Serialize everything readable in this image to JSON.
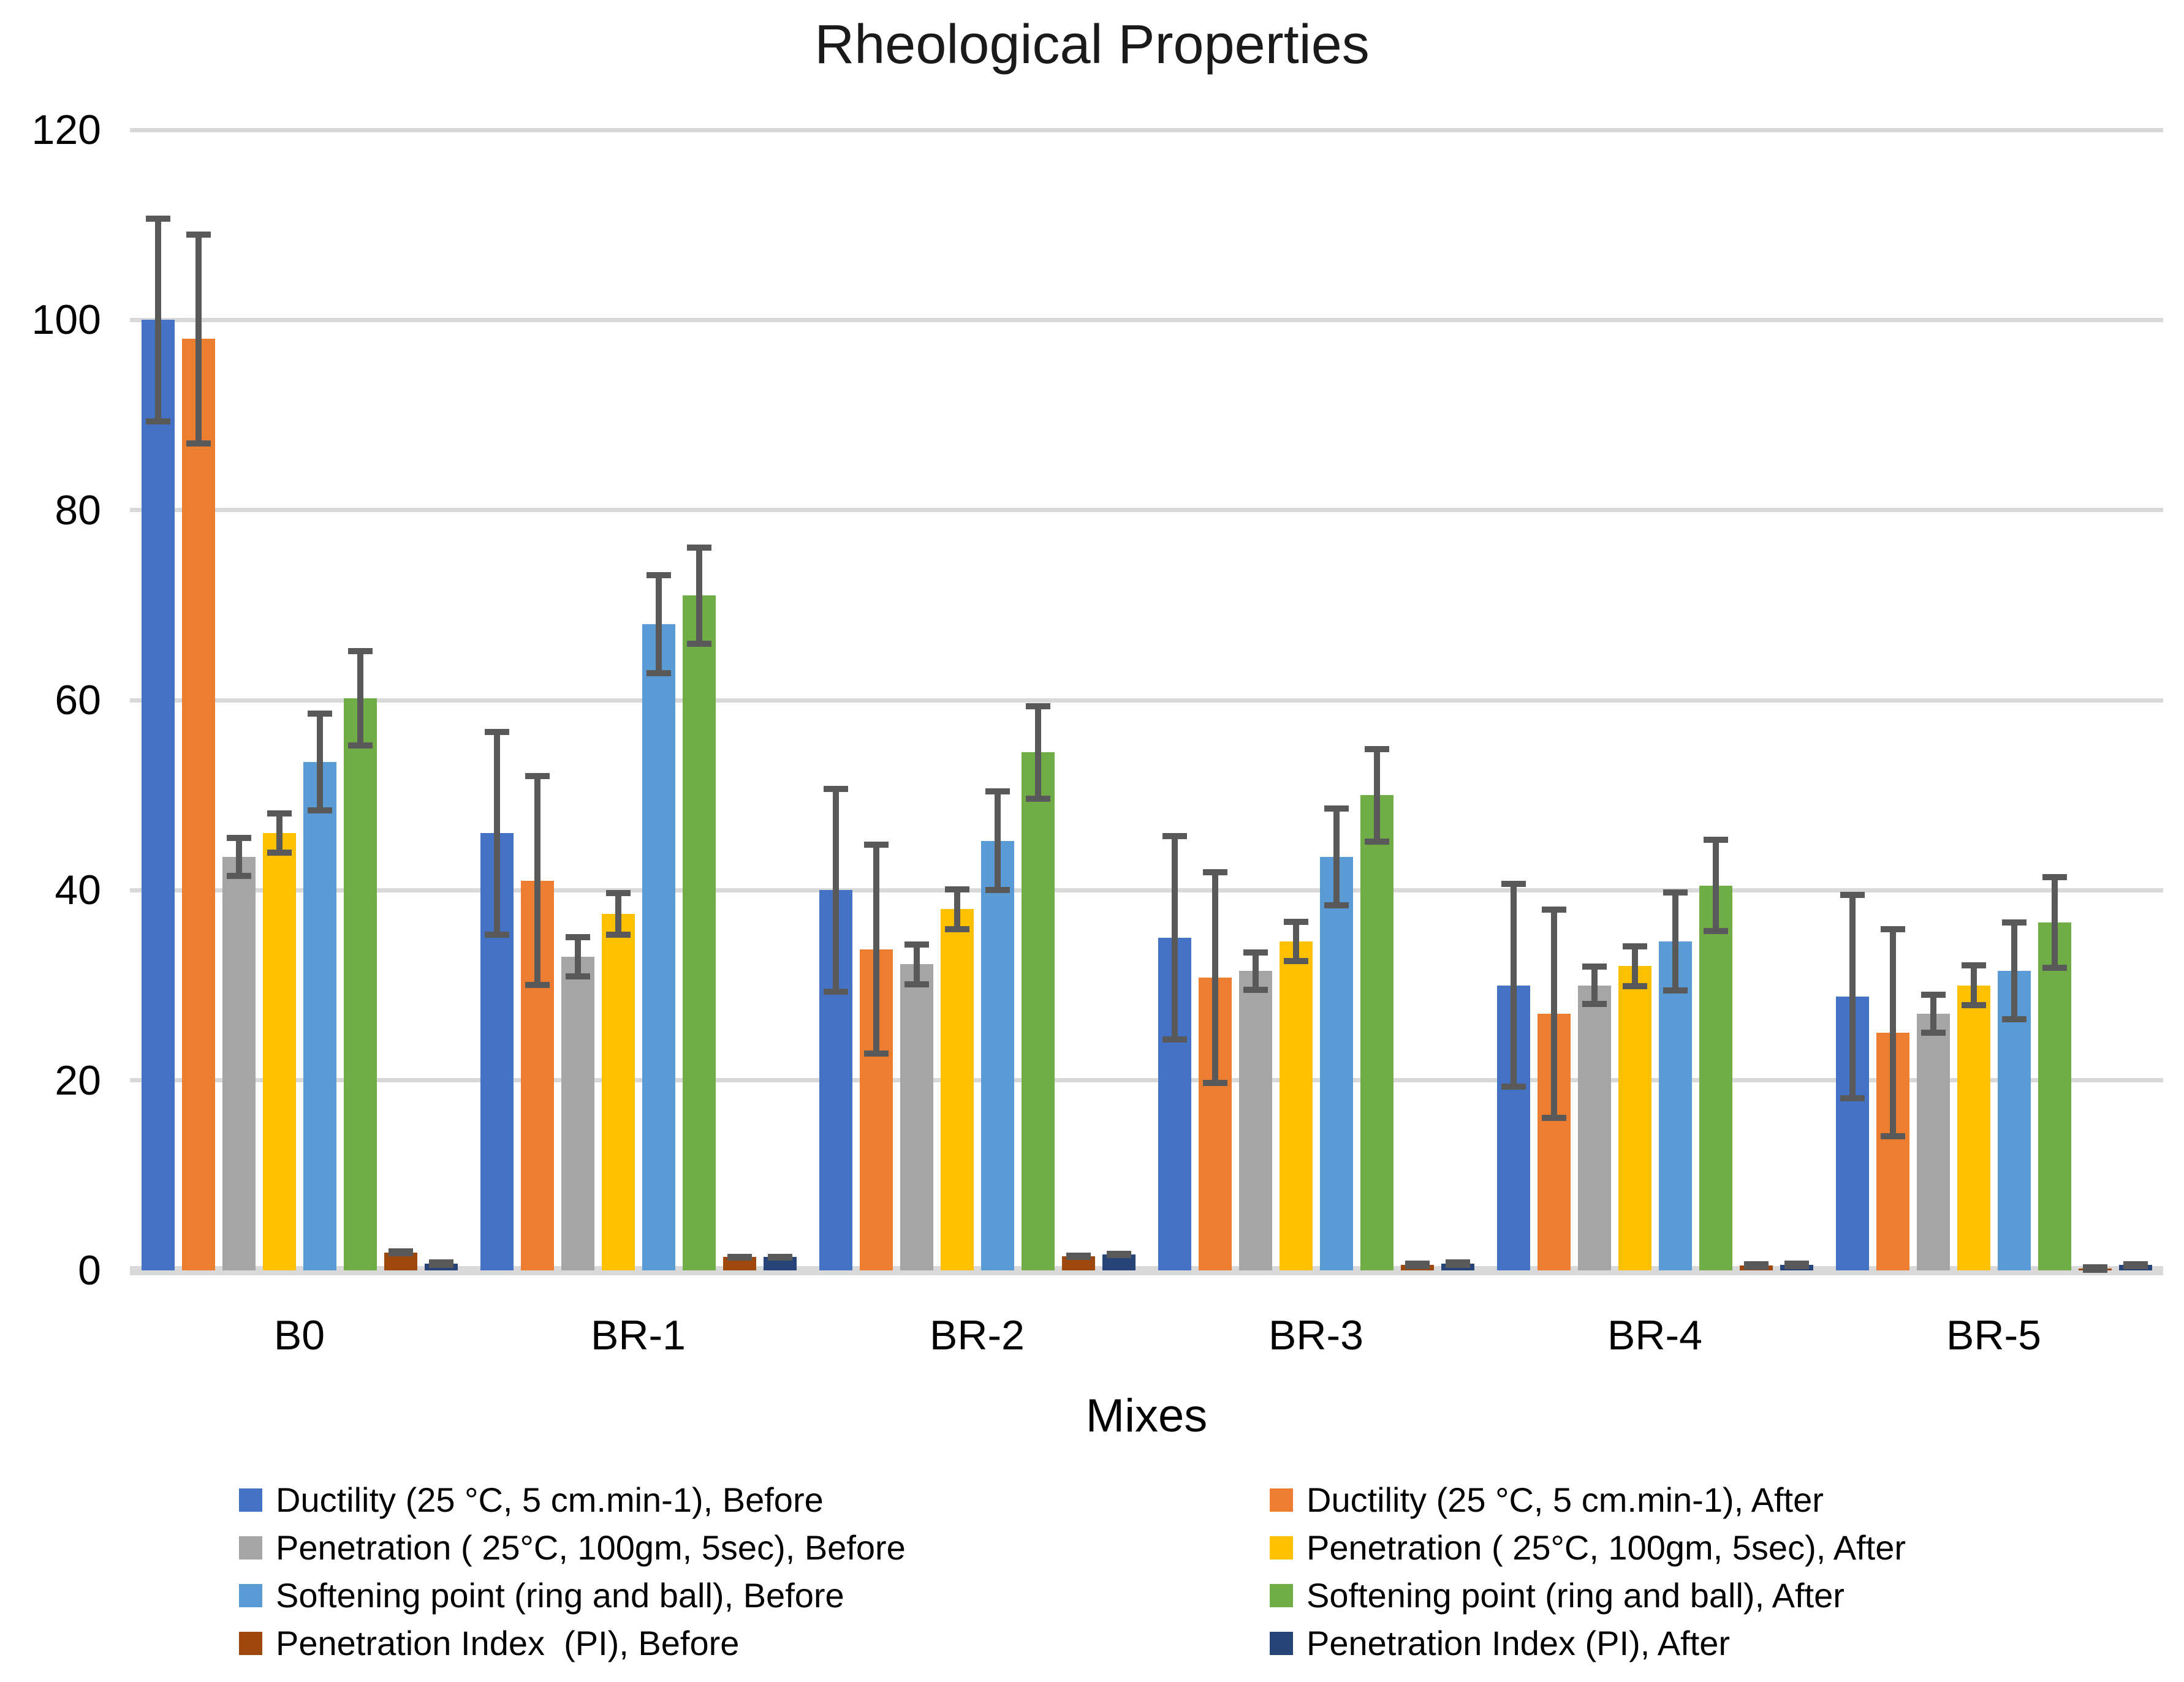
{
  "page": {
    "background": "#FFFFFF",
    "text_color": "#000000"
  },
  "chart_data": {
    "type": "bar",
    "title": "Rheological Properties",
    "xlabel": "Mixes",
    "ylabel": "",
    "ylim": [
      0,
      120
    ],
    "y_ticks": [
      0,
      20,
      40,
      60,
      80,
      100,
      120
    ],
    "grid": true,
    "gridline_color": "#D9D9D9",
    "error_bar_color": "#595959",
    "legend_position": "bottom-two-columns",
    "legend_columns": [
      [
        0,
        2,
        4,
        6
      ],
      [
        1,
        3,
        5,
        7
      ]
    ],
    "categories": [
      "B0",
      "BR-1",
      "BR-2",
      "BR-3",
      "BR-4",
      "BR-5"
    ],
    "series": [
      {
        "name": "Ductility (25 °C, 5 cm.min-1), Before",
        "color": "#4472C4",
        "values": [
          100,
          46,
          40,
          35,
          30,
          28.8
        ],
        "errors": [
          11,
          11,
          11,
          11,
          11,
          11
        ]
      },
      {
        "name": "Ductility (25 °C, 5 cm.min-1), After",
        "color": "#ED7D31",
        "values": [
          98,
          41,
          33.8,
          30.8,
          27,
          25
        ],
        "errors": [
          11.3,
          11.3,
          11.3,
          11.4,
          11.3,
          11.2
        ]
      },
      {
        "name": "Penetration ( 25°C, 100gm, 5sec), Before",
        "color": "#A5A5A5",
        "values": [
          43.5,
          33,
          32.2,
          31.5,
          30,
          27
        ],
        "errors": [
          2.3,
          2.4,
          2.4,
          2.3,
          2.3,
          2.3
        ]
      },
      {
        "name": "Penetration ( 25°C, 100gm, 5sec), After",
        "color": "#FFC000",
        "values": [
          46,
          37.5,
          38,
          34.6,
          32,
          30
        ],
        "errors": [
          2.4,
          2.5,
          2.4,
          2.4,
          2.4,
          2.4
        ]
      },
      {
        "name": "Softening point (ring and ball), Before",
        "color": "#5B9BD5",
        "values": [
          53.5,
          68,
          45.2,
          43.5,
          34.6,
          31.5
        ],
        "errors": [
          5.4,
          5.5,
          5.5,
          5.4,
          5.5,
          5.4
        ]
      },
      {
        "name": "Softening point (ring and ball), After",
        "color": "#70AD47",
        "values": [
          60.2,
          71,
          54.5,
          50,
          40.5,
          36.6
        ],
        "errors": [
          5.3,
          5.4,
          5.2,
          5.2,
          5.1,
          5.1
        ]
      },
      {
        "name": "Penetration Index  (PI), Before",
        "color": "#9E480E",
        "values": [
          1.9,
          1.4,
          1.5,
          0.6,
          0.5,
          0.2
        ],
        "errors": [
          0.2,
          0.3,
          0.25,
          0.2,
          0.2,
          0.2
        ]
      },
      {
        "name": "Penetration Index (PI), After",
        "color": "#264478",
        "values": [
          0.7,
          1.4,
          1.7,
          0.7,
          0.6,
          0.55
        ],
        "errors": [
          0.2,
          0.3,
          0.25,
          0.2,
          0.2,
          0.25
        ]
      }
    ]
  }
}
